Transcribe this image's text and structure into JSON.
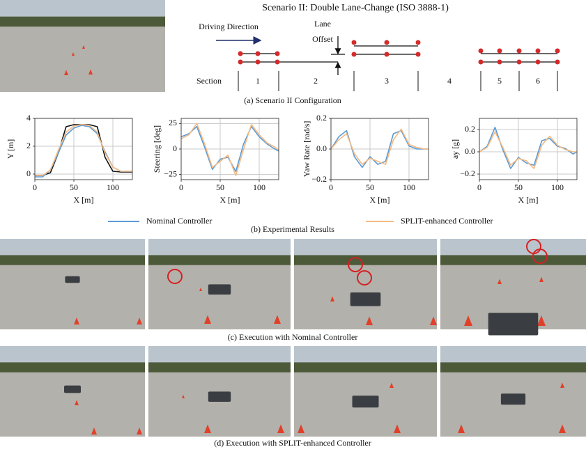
{
  "figure_title": "Scenario II: Double Lane-Change (ISO 3888-1)",
  "diagram": {
    "driving_direction": "Driving Direction",
    "lane_offset_lines": [
      "Lane",
      "Offset"
    ],
    "section_label": "Section",
    "sections": [
      "1",
      "2",
      "3",
      "4",
      "5",
      "6"
    ]
  },
  "captions": {
    "a": "(a) Scenario II Configuration",
    "b": "(b) Experimental Results",
    "c": "(c) Execution with Nominal Controller",
    "d": "(d) Execution with SPLIT-enhanced Controller"
  },
  "chart_data": [
    {
      "type": "line",
      "xlabel": "X [m]",
      "ylabel": "Y [m]",
      "x": [
        0,
        10,
        20,
        30,
        40,
        50,
        60,
        70,
        80,
        90,
        100,
        110,
        120,
        125
      ],
      "xlim": [
        0,
        125
      ],
      "xticks": [
        0,
        50,
        100
      ],
      "ylim": [
        -0.4,
        4
      ],
      "yticks": [
        0,
        2,
        4
      ],
      "grid": true,
      "series": [
        {
          "color": "#111111",
          "values": [
            -0.1,
            -0.1,
            0.1,
            1.5,
            3.4,
            3.55,
            3.55,
            3.55,
            3.4,
            1.2,
            0.2,
            0.15,
            0.15,
            0.15
          ]
        },
        {
          "name": "Nominal Controller",
          "color": "#5b9bd5",
          "values": [
            -0.2,
            -0.2,
            0.3,
            1.5,
            2.8,
            3.3,
            3.5,
            3.4,
            2.9,
            1.6,
            0.5,
            0.2,
            0.2,
            0.2
          ]
        },
        {
          "name": "SPLIT-enhanced Controller",
          "color": "#f4b982",
          "values": [
            -0.1,
            -0.1,
            0.3,
            1.7,
            3.0,
            3.45,
            3.55,
            3.5,
            3.0,
            1.5,
            0.5,
            0.2,
            0.2,
            0.2
          ]
        }
      ]
    },
    {
      "type": "line",
      "xlabel": "X [m]",
      "ylabel": "Steering [deg]",
      "x": [
        0,
        10,
        20,
        30,
        40,
        50,
        60,
        70,
        80,
        90,
        100,
        110,
        120,
        125
      ],
      "xlim": [
        0,
        125
      ],
      "xticks": [
        0,
        50,
        100
      ],
      "ylim": [
        -30,
        30
      ],
      "yticks": [
        {
          "value": -25,
          "label": "−25"
        },
        0,
        25
      ],
      "grid": true,
      "series": [
        {
          "color": "#5b9bd5",
          "values": [
            12,
            15,
            22,
            2,
            -20,
            -10,
            -8,
            -22,
            5,
            22,
            12,
            5,
            0,
            -2
          ]
        },
        {
          "color": "#f4b982",
          "values": [
            10,
            14,
            25,
            5,
            -18,
            -12,
            -6,
            -26,
            0,
            24,
            14,
            6,
            2,
            -1
          ]
        }
      ]
    },
    {
      "type": "line",
      "xlabel": "X [m]",
      "ylabel": "Yaw Rate [rad/s]",
      "x": [
        0,
        10,
        20,
        30,
        40,
        50,
        60,
        70,
        80,
        90,
        100,
        110,
        120,
        125
      ],
      "xlim": [
        0,
        125
      ],
      "xticks": [
        0,
        50,
        100
      ],
      "ylim": [
        -0.2,
        0.2
      ],
      "yticks": [
        {
          "value": -0.2,
          "label": "−0.2"
        },
        {
          "value": 0,
          "label": "0.0"
        },
        0.2
      ],
      "grid": true,
      "series": [
        {
          "color": "#5b9bd5",
          "values": [
            0.0,
            0.08,
            0.12,
            -0.05,
            -0.12,
            -0.05,
            -0.1,
            -0.08,
            0.1,
            0.12,
            0.02,
            0.0,
            0.0,
            0.0
          ]
        },
        {
          "color": "#f4b982",
          "values": [
            0.0,
            0.06,
            0.1,
            -0.03,
            -0.1,
            -0.06,
            -0.08,
            -0.1,
            0.06,
            0.13,
            0.03,
            0.01,
            0.0,
            0.0
          ]
        }
      ]
    },
    {
      "type": "line",
      "xlabel": "X [m]",
      "ylabel": "ay [g]",
      "x": [
        0,
        10,
        20,
        30,
        40,
        50,
        60,
        70,
        80,
        90,
        100,
        110,
        120,
        125
      ],
      "xlim": [
        0,
        125
      ],
      "xticks": [
        0,
        50,
        100
      ],
      "ylim": [
        -0.25,
        0.3
      ],
      "yticks": [
        {
          "value": -0.2,
          "label": "−0.2"
        },
        {
          "value": 0,
          "label": "0.0"
        },
        0.2
      ],
      "grid": true,
      "series": [
        {
          "color": "#5b9bd5",
          "values": [
            0.0,
            0.05,
            0.22,
            0.02,
            -0.15,
            -0.05,
            -0.1,
            -0.12,
            0.1,
            0.12,
            0.05,
            0.03,
            -0.02,
            0.0
          ]
        },
        {
          "color": "#f4b982",
          "values": [
            0.0,
            0.04,
            0.18,
            0.04,
            -0.12,
            -0.06,
            -0.08,
            -0.15,
            0.06,
            0.14,
            0.06,
            0.02,
            0.0,
            0.0
          ]
        }
      ]
    }
  ]
}
